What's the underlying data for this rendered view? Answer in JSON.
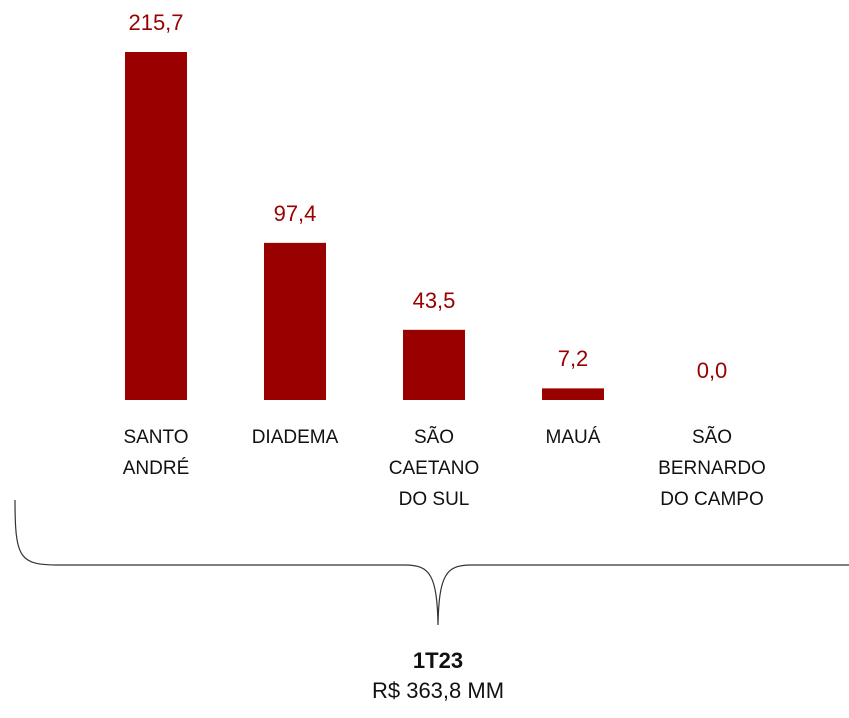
{
  "chart_data": {
    "type": "bar",
    "categories": [
      "SANTO\nANDRÉ",
      "DIADEMA",
      "SÃO\nCAETANO\nDO SUL",
      "MAUÁ",
      "SÃO\nBERNARDO\nDO CAMPO"
    ],
    "values": [
      215.7,
      97.4,
      43.5,
      7.2,
      0.0
    ],
    "value_labels": [
      "215,7",
      "97,4",
      "43,5",
      "7,2",
      "0,0"
    ],
    "color": "#990000",
    "annotation": {
      "title": "1T23",
      "text": "R$ 363,8 MM"
    }
  }
}
